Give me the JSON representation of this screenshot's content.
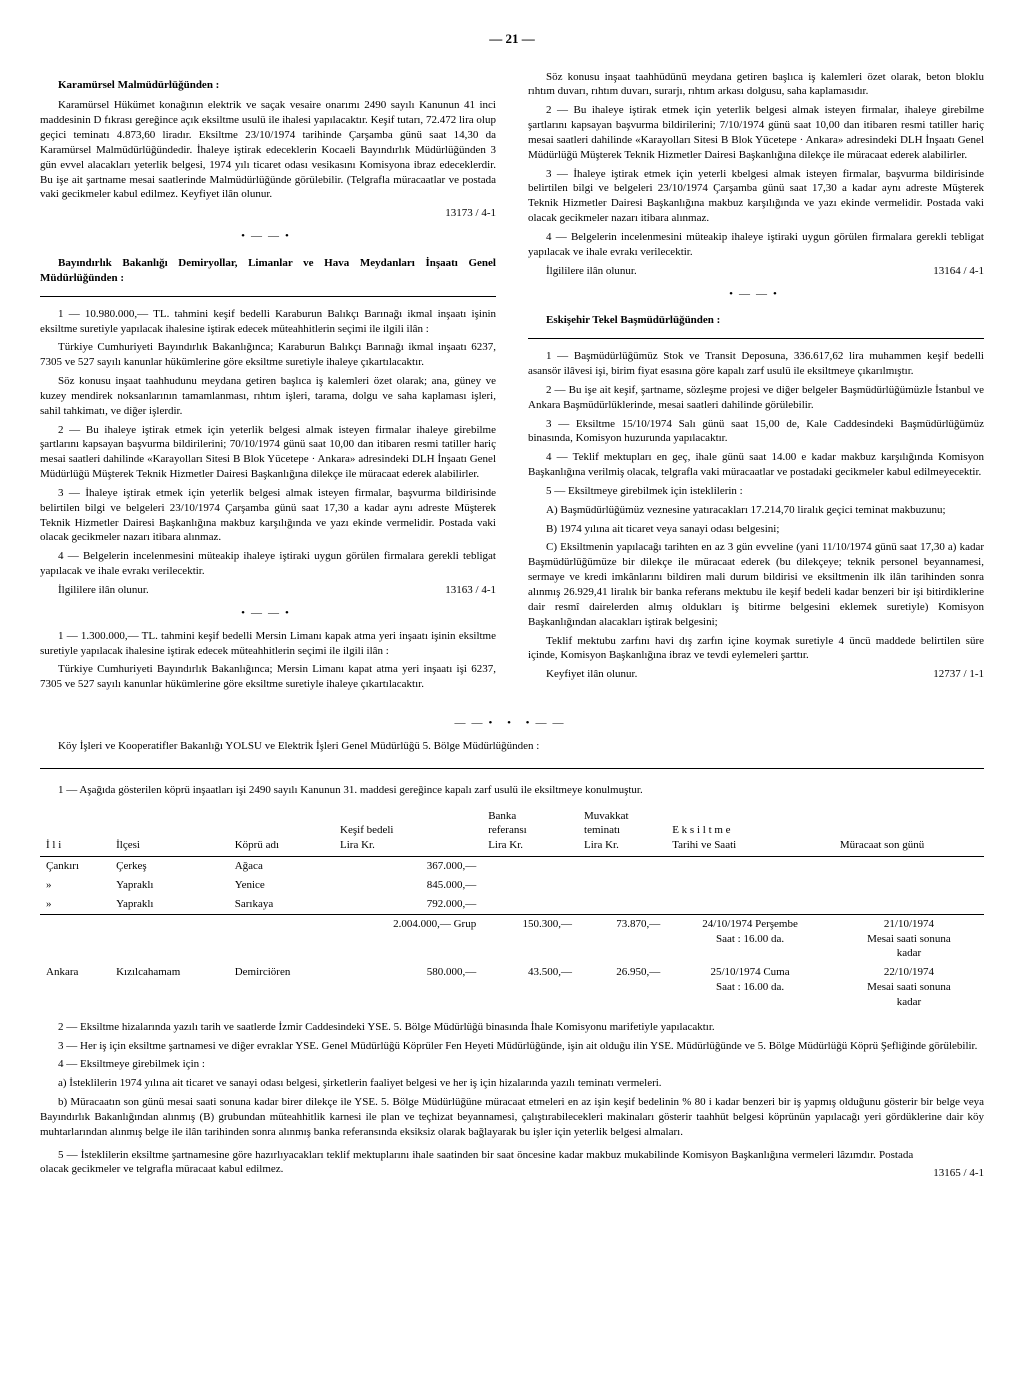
{
  "pageNumber": "— 21 —",
  "left": {
    "head1": "Karamürsel Malmüdürlüğünden :",
    "p1": "Karamürsel Hükümet konağının elektrik ve saçak vesaire onarımı 2490 sayılı Kanunun 41 inci maddesinin D fıkrası gereğince açık eksiltme usulü ile ihalesi yapılacaktır. Keşif tutarı, 72.472 lira olup geçici teminatı 4.873,60 liradır. Eksiltme 23/10/1974 tarihinde Çarşamba günü saat 14,30 da Karamürsel Malmüdürlüğündedir. İhaleye iştirak edeceklerin Kocaeli Bayındırlık Müdürlüğünden 3 gün evvel alacakları yeterlik belgesi, 1974 yılı ticaret odası vesikasını Komisyona ibraz edeceklerdir. Bu işe ait şartname mesai saatlerinde Malmüdürlüğünde görülebilir. (Telgrafla müracaatlar ve postada vaki gecikmeler kabul edilmez. Keyfiyet ilân olunur.",
    "num1": "13173 / 4-1",
    "head2": "Bayındırlık Bakanlığı Demiryollar, Limanlar ve Hava Meydanları İnşaatı Genel Müdürlüğünden :",
    "p2": "1 — 10.980.000,— TL. tahmini keşif bedelli Karaburun Balıkçı Barınağı ikmal inşaatı işinin eksiltme suretiyle yapılacak ihalesine iştirak edecek müteahhitlerin seçimi ile ilgili ilân :",
    "p3": "Türkiye Cumhuriyeti Bayındırlık Bakanlığınca; Karaburun Balıkçı Barınağı ikmal inşaatı 6237, 7305 ve 527 sayılı kanunlar hükümlerine göre eksiltme suretiyle ihaleye çıkartılacaktır.",
    "p4": "Söz konusu inşaat taahhudunu meydana getiren başlıca iş kalemleri özet olarak; ana, güney ve kuzey mendirek noksanlarının tamamlanması, rıhtım işleri, tarama, dolgu ve saha kaplaması işleri, sahil tahkimatı, ve diğer işlerdir.",
    "p5": "2 — Bu ihaleye iştirak etmek için yeterlik belgesi almak isteyen firmalar ihaleye girebilme şartlarını kapsayan başvurma bildirilerini; 70/10/1974 günü saat 10,00 dan itibaren resmi tatiller hariç mesai saatleri dahilinde «Karayolları Sitesi B Blok Yücetepe · Ankara» adresindeki DLH İnşaatı Genel Müdürlüğü Müşterek Teknik Hizmetler Dairesi Başkanlığına dilekçe ile müracaat ederek alabilirler.",
    "p6": "3 — İhaleye iştirak etmek için yeterlik belgesi almak isteyen firmalar, başvurma bildirisinde belirtilen bilgi ve belgeleri 23/10/1974 Çarşamba günü saat 17,30 a kadar aynı adreste Müşterek Teknik Hizmetler Dairesi Başkanlığına makbuz karşılığında ve yazı ekinde vermelidir. Postada vaki olacak gecikmeler nazarı itibara alınmaz.",
    "p7": "4 — Belgelerin incelenmesini müteakip ihaleye iştiraki uygun görülen firmalara gerekli tebligat yapılacak ve ihale evrakı verilecektir.",
    "p8": "İlgililere ilân olunur.",
    "num2": "13163 / 4-1",
    "p9": "1 — 1.300.000,— TL. tahmini keşif bedelli Mersin Limanı kapak atma yeri inşaatı işinin eksiltme suretiyle yapılacak ihalesine iştirak edecek müteahhitlerin seçimi ile ilgili ilân :",
    "p10": "Türkiye Cumhuriyeti Bayındırlık Bakanlığınca; Mersin Limanı kapat atma yeri inşaatı işi 6237, 7305 ve 527 sayılı kanunlar hükümlerine göre eksiltme suretiyle ihaleye çıkartılacaktır."
  },
  "right": {
    "p1": "Söz konusu inşaat taahhüdünü meydana getiren başlıca iş kalemleri özet olarak, beton bloklu rıhtım duvarı, rıhtım duvarı, surarjı, rıhtım arkası dolgusu, saha kaplamasıdır.",
    "p2": "2 — Bu ihaleye iştirak etmek için yeterlik belgesi almak isteyen firmalar, ihaleye girebilme şartlarını kapsayan başvurma bildirilerini; 7/10/1974 günü saat 10,00 dan itibaren resmi tatiller hariç mesai saatleri dahilinde «Karayolları Sitesi B Blok Yücetepe · Ankara» adresindeki DLH İnşaatı Genel Müdürlüğü Müşterek Teknik Hizmetler Dairesi Başkanlığına dilekçe ile müracaat ederek alabilirler.",
    "p3": "3 — İhaleye iştirak etmek için yeterli kbelgesi almak isteyen firmalar, başvurma bildirisinde belirtilen bilgi ve belgeleri 23/10/1974 Çarşamba günü saat 17,30 a kadar aynı adreste Müşterek Teknik Hizmetler Dairesi Başkanlığına makbuz karşılığında ve yazı ekinde vermelidir. Postada vaki olacak gecikmeler nazarı itibara alınmaz.",
    "p4": "4 — Belgelerin incelenmesini müteakip ihaleye iştiraki uygun görülen firmalara gerekli tebligat yapılacak ve ihale evrakı verilecektir.",
    "p5": "İlgililere ilân olunur.",
    "num1": "13164 / 4-1",
    "head2": "Eskişehir Tekel Başmüdürlüğünden :",
    "p6": "1 — Başmüdürlüğümüz Stok ve Transit Deposuna, 336.617,62 lira muhammen keşif bedelli asansör ilâvesi işi, birim fiyat esasına göre kapalı zarf usulü ile eksiltmeye çıkarılmıştır.",
    "p7": "2 — Bu işe ait keşif, şartname, sözleşme projesi ve diğer belgeler Başmüdürlüğümüzle İstanbul ve Ankara Başmüdürlüklerinde, mesai saatleri dahilinde görülebilir.",
    "p8": "3 — Eksiltme 15/10/1974 Salı günü saat 15,00 de, Kale Caddesindeki Başmüdürlüğümüz binasında, Komisyon huzurunda yapılacaktır.",
    "p9": "4 — Teklif mektupları en geç, ihale günü saat 14.00 e kadar makbuz karşılığında Komisyon Başkanlığına verilmiş olacak, telgrafla vaki müracaatlar ve postadaki gecikmeler kabul edilmeyecektir.",
    "p10": "5 — Eksiltmeye girebilmek için isteklilerin :",
    "p11": "A) Başmüdürlüğümüz veznesine yatıracakları 17.214,70 liralık geçici teminat makbuzunu;",
    "p12": "B) 1974 yılına ait ticaret veya sanayi odası belgesini;",
    "p13": "C) Eksiltmenin yapılacağı tarihten en az 3 gün evveline (yani 11/10/1974 günü saat 17,30 a) kadar Başmüdürlüğümüze bir dilekçe ile müracaat ederek (bu dilekçeye; teknik personel beyannamesi, sermaye ve kredi imkânlarını bildiren mali durum bildirisi ve eksiltmenin ilk ilân tarihinden sonra alınmış 26.929,41 liralık bir banka referans mektubu ile keşif bedeli kadar benzeri bir işi bitirdiklerine dair resmî dairelerden almış oldukları iş bitirme belgesini eklemek suretiyle) Komisyon Başkanlığından alacakları iştirak belgesini;",
    "p14": "Teklif mektubu zarfını havi dış zarfın içine koymak suretiyle 4 üncü maddede belirtilen süre içinde, Komisyon Başkanlığına ibraz ve tevdi eylemeleri şarttır.",
    "p15": "Keyfiyet ilân olunur.",
    "num2": "12737 / 1-1"
  },
  "bottom": {
    "head": "Köy İşleri ve Kooperatifler Bakanlığı YOLSU ve Elektrik İşleri Genel Müdürlüğü 5. Bölge Müdürlüğünden :",
    "intro": "1 — Aşağıda gösterilen köprü inşaatları işi 2490 sayılı Kanunun 31. maddesi gereğince kapalı zarf usulü ile eksiltmeye konulmuştur.",
    "table": {
      "headers": [
        "İ l i",
        "İlçesi",
        "Köprü adı",
        "Keşif bedeli\nLira Kr.",
        "Banka\nreferansı\nLira Kr.",
        "Muvakkat\nteminatı\nLira Kr.",
        "E k s i l t m e\nTarihi ve Saati",
        "Müracaat son günü"
      ],
      "rows": [
        [
          "Çankırı",
          "Çerkeş",
          "Ağaca",
          "367.000,—",
          "",
          "",
          "",
          ""
        ],
        [
          "»",
          "Yapraklı",
          "Yenice",
          "845.000,—",
          "",
          "",
          "",
          ""
        ],
        [
          "»",
          "Yapraklı",
          "Sarıkaya",
          "792.000,—",
          "",
          "",
          "",
          ""
        ],
        [
          "",
          "",
          "",
          "2.004.000,— Grup",
          "150.300,—",
          "73.870,—",
          "24/10/1974  Perşembe\nSaat :  16.00 da.",
          "21/10/1974\nMesai saati sonuna\nkadar"
        ],
        [
          "Ankara",
          "Kızılcahamam",
          "Demirciören",
          "580.000,—",
          "43.500,—",
          "26.950,—",
          "25/10/1974  Cuma\nSaat :  16.00 da.",
          "22/10/1974\nMesai saati sonuna\nkadar"
        ]
      ]
    },
    "p2": "2 — Eksiltme hizalarında yazılı tarih ve saatlerde İzmir Caddesindeki YSE. 5. Bölge Müdürlüğü binasında İhale Komisyonu marifetiyle yapılacaktır.",
    "p3": "3 — Her iş için eksiltme şartnamesi ve diğer evraklar YSE. Genel Müdürlüğü Köprüler Fen Heyeti Müdürlüğünde, işin ait olduğu ilin YSE. Müdürlüğünde ve 5. Bölge Müdürlüğü Köprü Şefliğinde görülebilir.",
    "p4": "4 — Eksiltmeye girebilmek için :",
    "p5": "a) İsteklilerin 1974 yılına ait ticaret ve sanayi odası belgesi, şirketlerin faaliyet belgesi ve her iş için hizalarında yazılı teminatı vermeleri.",
    "p6": "b) Müracaatın son günü mesai saati sonuna kadar birer dilekçe ile YSE. 5. Bölge Müdürlüğüne müracaat etmeleri en az işin keşif bedelinin % 80 i kadar benzeri bir iş yapmış olduğunu gösterir bir belge veya Bayındırlık Bakanlığından alınmış (B) grubundan müteahhitlik karnesi ile plan ve teçhizat beyannamesi, çalıştırabilecekleri makinaları gösterir taahhüt belgesi köprünün yapılacağı yeri gördüklerine dair köy muhtarlarından alınmış belge ile ilân tarihinden sonra alınmış banka referansında eksiksiz olarak bağlayarak bu işler için yeterlik belgesi almaları.",
    "p7": "5 — İsteklilerin eksiltme şartnamesine göre hazırlıyacakları teklif mektuplarını ihale saatinden bir saat öncesine kadar makbuz mukabilinde Komisyon Başkanlığına vermeleri lâzımdır. Postada olacak gecikmeler ve telgrafla müracaat kabul edilmez.",
    "num": "13165 / 4-1"
  }
}
